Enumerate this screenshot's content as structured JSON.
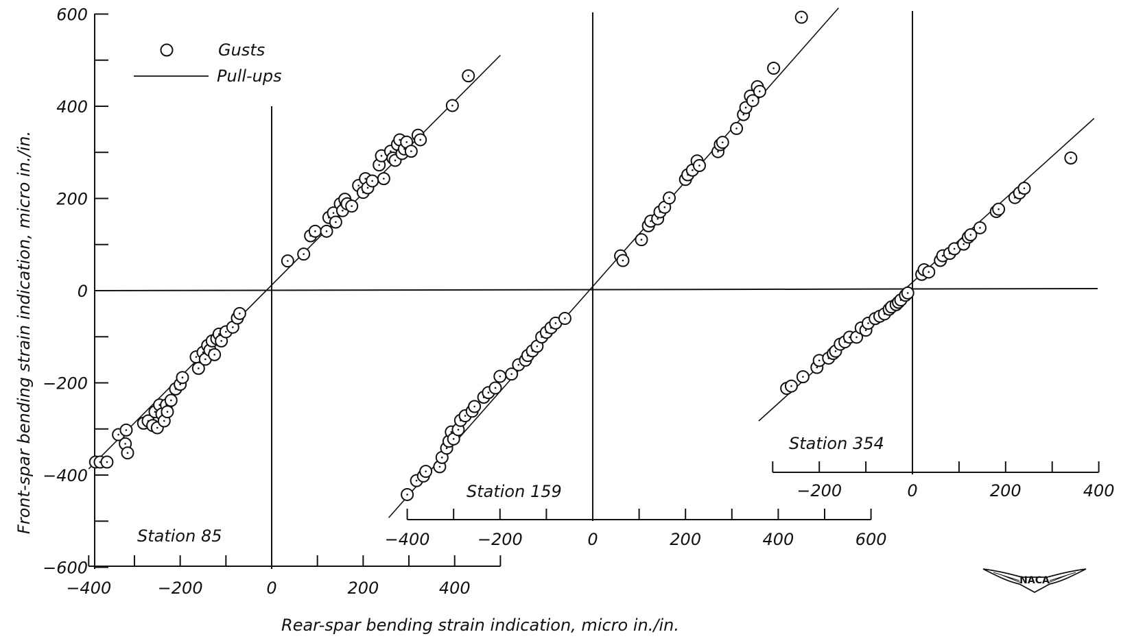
{
  "chart_data": {
    "type": "scatter",
    "ylabel": "Front-spar bending strain indication, micro in./in.",
    "xlabel": "Rear-spar bending strain indication, micro in./in.",
    "y_ticks": [
      "600",
      "400",
      "200",
      "0",
      "-200",
      "-400",
      "-600"
    ],
    "legend": {
      "position": "top-left",
      "entries": [
        {
          "symbol": "circle",
          "label": "Gusts"
        },
        {
          "symbol": "line",
          "label": "Pull-ups"
        }
      ]
    },
    "logo": "NACA",
    "panels": [
      {
        "label": "Station 85",
        "x_ticks": [
          "-400",
          "-200",
          "0",
          "200",
          "400"
        ],
        "xlim": [
          -400,
          500
        ],
        "ylim": [
          -600,
          600
        ],
        "pullups_line": {
          "x": [
            -400,
            500
          ],
          "y": [
            -390,
            515
          ]
        },
        "gusts": {
          "x": [
            -385,
            -375,
            -360,
            -335,
            -320,
            -318,
            -315,
            -280,
            -270,
            -260,
            -255,
            -250,
            -245,
            -240,
            -235,
            -230,
            -228,
            -220,
            -210,
            -200,
            -195,
            -165,
            -160,
            -150,
            -145,
            -140,
            -135,
            -130,
            -125,
            -120,
            -115,
            -110,
            -100,
            -85,
            -75,
            -70,
            35,
            70,
            85,
            95,
            120,
            125,
            135,
            140,
            150,
            155,
            160,
            165,
            175,
            190,
            200,
            205,
            210,
            220,
            235,
            240,
            245,
            260,
            265,
            270,
            275,
            280,
            285,
            290,
            295,
            305,
            320,
            325,
            395,
            430
          ],
          "y": [
            -375,
            -375,
            -375,
            -315,
            -335,
            -305,
            -355,
            -290,
            -285,
            -295,
            -265,
            -300,
            -250,
            -270,
            -285,
            -250,
            -265,
            -240,
            -215,
            -205,
            -190,
            -145,
            -170,
            -135,
            -150,
            -120,
            -130,
            -110,
            -140,
            -105,
            -95,
            -110,
            -90,
            -80,
            -60,
            -50,
            65,
            80,
            120,
            130,
            130,
            160,
            170,
            150,
            190,
            175,
            200,
            190,
            185,
            230,
            215,
            245,
            225,
            240,
            275,
            295,
            245,
            305,
            290,
            285,
            320,
            330,
            300,
            310,
            325,
            305,
            340,
            330,
            405,
            470
          ]
        }
      },
      {
        "label": "Station 159",
        "x_ticks": [
          "-400",
          "-200",
          "0",
          "200",
          "400",
          "600"
        ],
        "xlim": [
          -400,
          600
        ],
        "ylim": [
          -500,
          600
        ],
        "pullups_line": {
          "x": [
            -440,
            530
          ],
          "y": [
            -490,
            610
          ]
        },
        "gusts": {
          "x": [
            -400,
            -380,
            -365,
            -360,
            -330,
            -325,
            -315,
            -310,
            -305,
            -300,
            -290,
            -285,
            -275,
            -260,
            -255,
            -235,
            -225,
            -210,
            -200,
            -175,
            -160,
            -145,
            -140,
            -130,
            -120,
            -110,
            -100,
            -90,
            -80,
            -60,
            60,
            65,
            105,
            120,
            125,
            140,
            145,
            155,
            165,
            200,
            205,
            215,
            225,
            230,
            270,
            275,
            280,
            310,
            325,
            330,
            340,
            345,
            355,
            360,
            390,
            450
          ],
          "y": [
            -440,
            -410,
            -400,
            -390,
            -380,
            -360,
            -340,
            -325,
            -305,
            -320,
            -300,
            -280,
            -270,
            -260,
            -250,
            -230,
            -220,
            -210,
            -185,
            -180,
            -160,
            -150,
            -140,
            -130,
            -120,
            -100,
            -90,
            -80,
            -70,
            -60,
            75,
            65,
            110,
            140,
            150,
            155,
            170,
            180,
            200,
            240,
            250,
            260,
            280,
            270,
            300,
            315,
            320,
            350,
            380,
            395,
            420,
            410,
            440,
            430,
            480,
            590
          ]
        }
      },
      {
        "label": "Station 354",
        "x_ticks": [
          "-200",
          "0",
          "200",
          "400"
        ],
        "xlim": [
          -300,
          400
        ],
        "ylim": [
          -300,
          400
        ],
        "pullups_line": {
          "x": [
            -330,
            390
          ],
          "y": [
            -280,
            370
          ]
        },
        "gusts": {
          "x": [
            -270,
            -260,
            -235,
            -205,
            -200,
            -180,
            -170,
            -165,
            -155,
            -145,
            -135,
            -120,
            -110,
            -100,
            -95,
            -80,
            -70,
            -60,
            -50,
            -45,
            -35,
            -30,
            -25,
            -15,
            -10,
            20,
            25,
            35,
            60,
            65,
            80,
            90,
            110,
            120,
            125,
            145,
            180,
            185,
            220,
            230,
            240,
            340
          ],
          "y": [
            -210,
            -205,
            -185,
            -165,
            -150,
            -145,
            -135,
            -130,
            -115,
            -110,
            -100,
            -100,
            -80,
            -85,
            -70,
            -60,
            -55,
            -50,
            -40,
            -35,
            -30,
            -25,
            -20,
            -10,
            -5,
            35,
            45,
            40,
            65,
            75,
            80,
            90,
            100,
            115,
            120,
            135,
            170,
            175,
            200,
            210,
            220,
            285
          ]
        }
      }
    ]
  }
}
